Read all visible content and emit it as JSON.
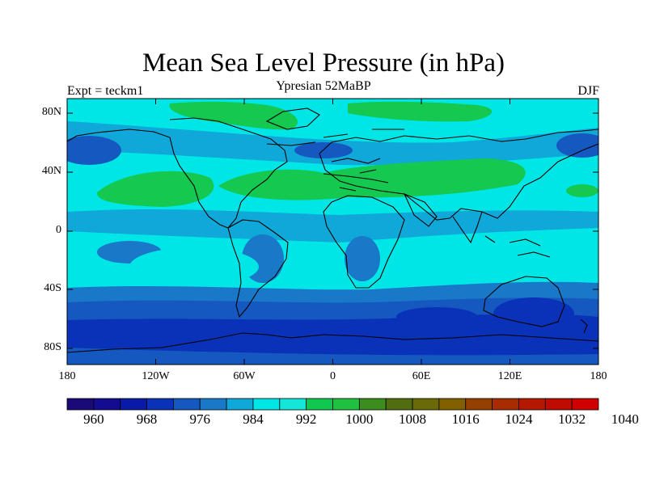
{
  "title": "Mean Sea Level Pressure (in hPa)",
  "subtitle": "Ypresian  52MaBP",
  "experiment_label": "Expt = teckm1",
  "season": "DJF",
  "lat_labels": [
    "80N",
    "40N",
    "0",
    "40S",
    "80S"
  ],
  "lon_labels": [
    "180",
    "120W",
    "60W",
    "0",
    "60E",
    "120E",
    "180"
  ],
  "colorbar": {
    "labels": [
      "960",
      "968",
      "976",
      "984",
      "992",
      "1000",
      "1008",
      "1016",
      "1024",
      "1032",
      "1040"
    ],
    "colors": [
      "#1a0a78",
      "#140c90",
      "#0a1aa8",
      "#0a32b8",
      "#1458c0",
      "#1a78c8",
      "#10a8d8",
      "#00e6e6",
      "#14e6d8",
      "#10c850",
      "#20c040",
      "#3c8c1e",
      "#506e10",
      "#6a6a08",
      "#826000",
      "#964000",
      "#a82c00",
      "#b41800",
      "#c00c00",
      "#d00000"
    ]
  },
  "fill_colors": {
    "dark_blue": "#0a32b8",
    "blue": "#1458c0",
    "mid_blue": "#1a78c8",
    "light_blue": "#10a8d8",
    "cyan": "#00e6e6",
    "green": "#14c850"
  }
}
